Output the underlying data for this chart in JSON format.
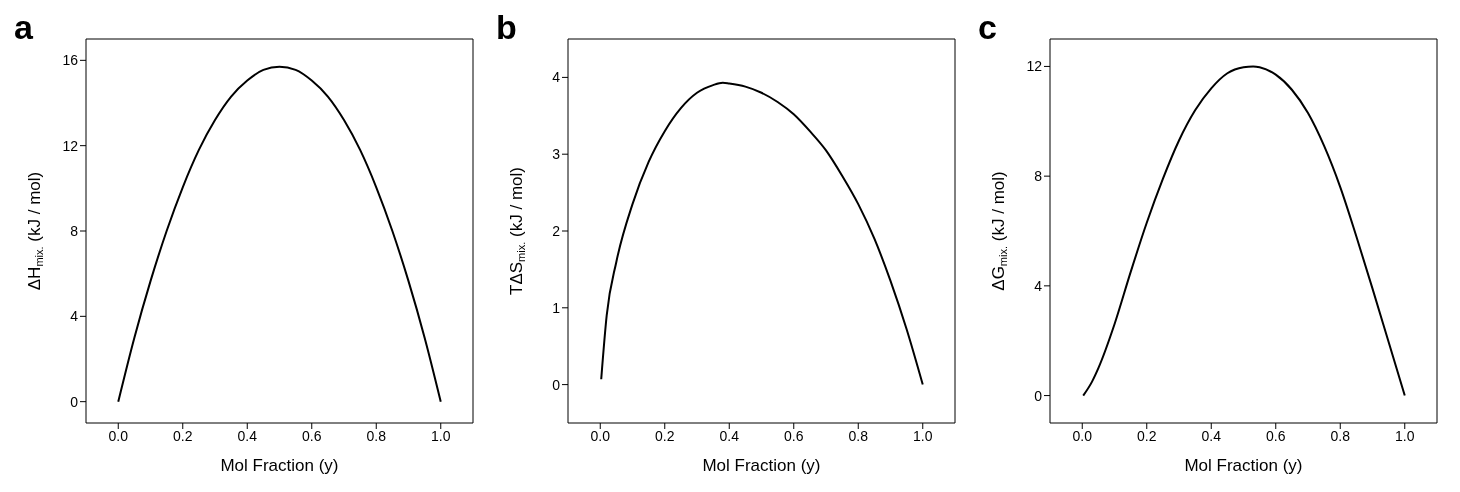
{
  "chart_data": [
    {
      "type": "line",
      "title": "a",
      "xlabel": "Mol Fraction (y)",
      "ylabel": "ΔH$_{mix.}$ (kJ / mol)",
      "xlim": [
        -0.1,
        1.1
      ],
      "xticks": [
        {
          "value": 0,
          "label": "0.0"
        },
        {
          "value": 0.2,
          "label": "0.2"
        },
        {
          "value": 0.4,
          "label": "0.4"
        },
        {
          "value": 0.6,
          "label": "0.6"
        },
        {
          "value": 0.8,
          "label": "0.8"
        },
        {
          "value": 1,
          "label": "1.0"
        }
      ],
      "ylim": [
        -1,
        17
      ],
      "yticks": [
        0,
        4,
        8,
        12,
        16
      ],
      "marker": "none",
      "line_style": "solid",
      "x": [
        0,
        0.05,
        0.1,
        0.15,
        0.2,
        0.25,
        0.3,
        0.35,
        0.4,
        0.45,
        0.5,
        0.55,
        0.6,
        0.65,
        0.7,
        0.75,
        0.8,
        0.85,
        0.9,
        0.95,
        1
      ],
      "series": [
        {
          "color": "#000000",
          "values": [
            0,
            3.0,
            5.65,
            8.0,
            10.05,
            11.8,
            13.2,
            14.3,
            15.05,
            15.55,
            15.7,
            15.55,
            15.05,
            14.3,
            13.2,
            11.8,
            10.05,
            8.0,
            5.65,
            3.0,
            0
          ]
        }
      ]
    },
    {
      "type": "line",
      "title": "b",
      "xlabel": "Mol Fraction (y)",
      "ylabel": "TΔS$_{mix.}$ (kJ / mol)",
      "xlim": [
        -0.1,
        1.1
      ],
      "xticks": [
        {
          "value": 0,
          "label": "0.0"
        },
        {
          "value": 0.2,
          "label": "0.2"
        },
        {
          "value": 0.4,
          "label": "0.4"
        },
        {
          "value": 0.6,
          "label": "0.6"
        },
        {
          "value": 0.8,
          "label": "0.8"
        },
        {
          "value": 1,
          "label": "1.0"
        }
      ],
      "ylim": [
        -0.5,
        4.5
      ],
      "yticks": [
        0,
        1,
        2,
        3,
        4
      ],
      "marker": "none",
      "line_style": "solid",
      "x": [
        0.003,
        0.02,
        0.05,
        0.1,
        0.15,
        0.2,
        0.25,
        0.3,
        0.35,
        0.38,
        0.4,
        0.45,
        0.5,
        0.55,
        0.6,
        0.65,
        0.7,
        0.75,
        0.8,
        0.85,
        0.9,
        0.95,
        1
      ],
      "series": [
        {
          "color": "#000000",
          "values": [
            0.07,
            0.9,
            1.6,
            2.35,
            2.9,
            3.3,
            3.6,
            3.8,
            3.9,
            3.93,
            3.92,
            3.88,
            3.8,
            3.68,
            3.52,
            3.3,
            3.05,
            2.72,
            2.35,
            1.9,
            1.35,
            0.72,
            0
          ]
        }
      ]
    },
    {
      "type": "line",
      "title": "c",
      "xlabel": "Mol Fraction (y)",
      "ylabel": "ΔG$_{mix.}$ (kJ / mol)",
      "xlim": [
        -0.1,
        1.1
      ],
      "xticks": [
        {
          "value": 0,
          "label": "0.0"
        },
        {
          "value": 0.2,
          "label": "0.2"
        },
        {
          "value": 0.4,
          "label": "0.4"
        },
        {
          "value": 0.6,
          "label": "0.6"
        },
        {
          "value": 0.8,
          "label": "0.8"
        },
        {
          "value": 1,
          "label": "1.0"
        }
      ],
      "ylim": [
        -1,
        13
      ],
      "yticks": [
        0,
        4,
        8,
        12
      ],
      "marker": "none",
      "line_style": "solid",
      "x": [
        0.003,
        0.03,
        0.05,
        0.1,
        0.15,
        0.2,
        0.25,
        0.3,
        0.35,
        0.4,
        0.45,
        0.5,
        0.53,
        0.55,
        0.6,
        0.65,
        0.7,
        0.75,
        0.8,
        0.85,
        0.9,
        0.95,
        1
      ],
      "series": [
        {
          "color": "#000000",
          "values": [
            0,
            0.5,
            1.0,
            2.6,
            4.5,
            6.3,
            7.9,
            9.3,
            10.4,
            11.2,
            11.75,
            11.97,
            12.0,
            11.97,
            11.7,
            11.15,
            10.3,
            9.1,
            7.6,
            5.8,
            3.9,
            1.95,
            0
          ]
        }
      ]
    }
  ]
}
